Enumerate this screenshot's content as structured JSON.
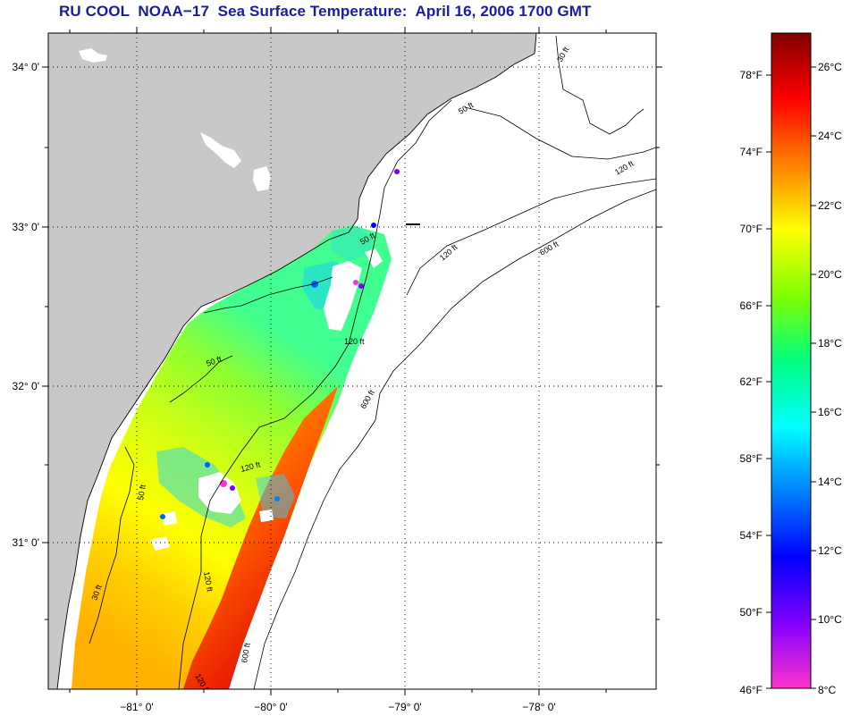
{
  "title": "RU COOL  NOAA−17  Sea Surface Temperature:  April 16, 2006 1700 GMT",
  "map": {
    "lat_labels": [
      "34° 0'",
      "33° 0'",
      "32° 0'",
      "31° 0'"
    ],
    "lon_labels": [
      "−81° 0'",
      "−80° 0'",
      "−79° 0'",
      "−78° 0'"
    ],
    "contour_labels": [
      "30 ft",
      "50 ft",
      "120 ft",
      "600 ft",
      "50 ft",
      "120 ft",
      "120 ft",
      "600 ft",
      "50 ft",
      "120 ft",
      "50 ft",
      "120 ft",
      "30 ft",
      "600 ft",
      "120 ft"
    ],
    "land_color": "#c8c8c8",
    "cloud_color": "#ffffff"
  },
  "colorbar": {
    "fahrenheit_labels": [
      "78°F",
      "74°F",
      "70°F",
      "66°F",
      "62°F",
      "58°F",
      "54°F",
      "50°F",
      "46°F"
    ],
    "celsius_labels": [
      "26°C",
      "24°C",
      "22°C",
      "20°C",
      "18°C",
      "16°C",
      "14°C",
      "12°C",
      "10°C",
      "8°C"
    ],
    "stops": [
      "#ff33cc",
      "#8000ff",
      "#0000ff",
      "#0080ff",
      "#00ffff",
      "#00ff80",
      "#80ff00",
      "#ffff00",
      "#ff8000",
      "#ff0000",
      "#800000"
    ]
  }
}
